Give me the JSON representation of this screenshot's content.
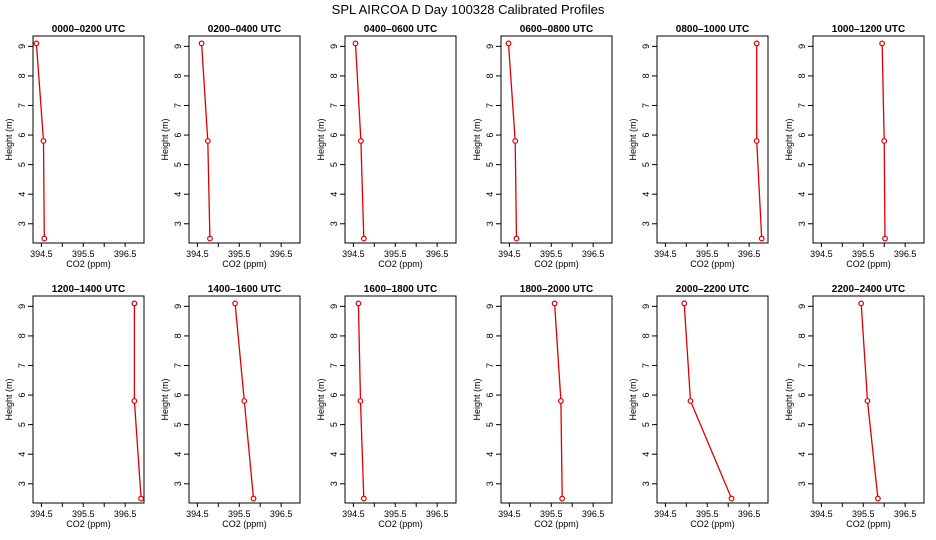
{
  "title": "SPL AIRCOA D  Day 100328  Calibrated Profiles",
  "color": "#dd0000",
  "chart_data": {
    "type": "line",
    "xlabel": "CO2 (ppm)",
    "ylabel": "Height (m)",
    "xlim": [
      394.3,
      396.95
    ],
    "ylim": [
      2.35,
      9.35
    ],
    "xticks": [
      394.5,
      395,
      395.5,
      396,
      396.5
    ],
    "xtick_labels": [
      "394.5",
      "",
      "395.5",
      "",
      "396.5"
    ],
    "yticks": [
      3,
      4,
      5,
      6,
      7,
      8,
      9
    ],
    "yticks_top_row_labeled": [
      3,
      4,
      5,
      6,
      7,
      8,
      9
    ],
    "panels": [
      {
        "title": "0000–0200 UTC",
        "heights": [
          9.1,
          5.8,
          2.5
        ],
        "co2": [
          394.38,
          394.55,
          394.57
        ]
      },
      {
        "title": "0200–0400 UTC",
        "heights": [
          9.1,
          5.8,
          2.5
        ],
        "co2": [
          394.6,
          394.75,
          394.8
        ]
      },
      {
        "title": "0400–0600 UTC",
        "heights": [
          9.1,
          5.8,
          2.5
        ],
        "co2": [
          394.55,
          394.68,
          394.75
        ]
      },
      {
        "title": "0600–0800 UTC",
        "heights": [
          9.1,
          5.8,
          2.5
        ],
        "co2": [
          394.48,
          394.64,
          394.67
        ]
      },
      {
        "title": "0800–1000 UTC",
        "heights": [
          9.1,
          5.8,
          2.5
        ],
        "co2": [
          396.68,
          396.68,
          396.8
        ]
      },
      {
        "title": "1000–1200 UTC",
        "heights": [
          9.1,
          5.8,
          2.5
        ],
        "co2": [
          395.95,
          396.0,
          396.02
        ]
      },
      {
        "title": "1200–1400 UTC",
        "heights": [
          9.1,
          5.8,
          2.5
        ],
        "co2": [
          396.72,
          396.72,
          396.88
        ]
      },
      {
        "title": "1400–1600 UTC",
        "heights": [
          9.1,
          5.8,
          2.5
        ],
        "co2": [
          395.4,
          395.62,
          395.84
        ]
      },
      {
        "title": "1600–1800 UTC",
        "heights": [
          9.1,
          5.8,
          2.5
        ],
        "co2": [
          394.62,
          394.67,
          394.75
        ]
      },
      {
        "title": "1800–2000 UTC",
        "heights": [
          9.1,
          5.8,
          2.5
        ],
        "co2": [
          395.58,
          395.73,
          395.76
        ]
      },
      {
        "title": "2000–2200 UTC",
        "heights": [
          9.1,
          5.8,
          2.5
        ],
        "co2": [
          394.95,
          395.1,
          396.08
        ]
      },
      {
        "title": "2200–2400 UTC",
        "heights": [
          9.1,
          5.8,
          2.5
        ],
        "co2": [
          395.45,
          395.6,
          395.85
        ]
      }
    ]
  }
}
